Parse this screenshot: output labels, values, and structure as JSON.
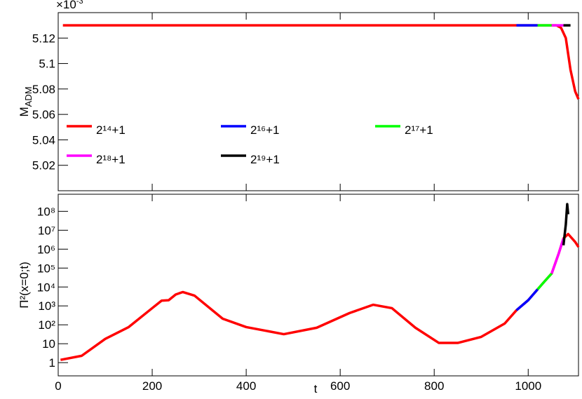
{
  "chart_data": [
    {
      "type": "line",
      "y_label": "M",
      "y_label_subscript": "ADM",
      "multiplier": "×10",
      "multiplier_exponent": "-3",
      "xlim": [
        0,
        1107
      ],
      "xticks": [
        0,
        200,
        400,
        600,
        800,
        1000
      ],
      "ylim": [
        5.0,
        5.14
      ],
      "yticks": [
        5.02,
        5.04,
        5.06,
        5.08,
        5.1,
        5.12
      ],
      "series": [
        {
          "name": "2¹⁴+1",
          "color": "#ff0000",
          "x": [
            10,
            1060,
            1070,
            1080,
            1090,
            1100,
            1107
          ],
          "values": [
            5.13,
            5.13,
            5.128,
            5.12,
            5.095,
            5.078,
            5.072
          ]
        },
        {
          "name": "2¹⁶+1",
          "color": "#0000ff",
          "x": [
            975,
            1020
          ],
          "values": [
            5.13,
            5.13
          ]
        },
        {
          "name": "2¹⁷+1",
          "color": "#00ff00",
          "x": [
            1020,
            1050
          ],
          "values": [
            5.13,
            5.13
          ]
        },
        {
          "name": "2¹⁸+1",
          "color": "#ff00ff",
          "x": [
            1050,
            1075
          ],
          "values": [
            5.13,
            5.13
          ]
        },
        {
          "name": "2¹⁹+1",
          "color": "#000000",
          "x": [
            1075,
            1090
          ],
          "values": [
            5.13,
            5.13
          ]
        }
      ]
    },
    {
      "type": "line",
      "y_label": "Π²(x=0;t)",
      "x_label": "t",
      "log_y": true,
      "xlim": [
        0,
        1107
      ],
      "xticks": [
        0,
        200,
        400,
        600,
        800,
        1000
      ],
      "ylim": [
        0.2,
        800000000
      ],
      "yticks": [
        1,
        10,
        {
          "value": 100,
          "label": "10²"
        },
        {
          "value": 1000,
          "label": "10³"
        },
        {
          "value": 10000,
          "label": "10⁴"
        },
        {
          "value": 100000,
          "label": "10⁵"
        },
        {
          "value": 1000000,
          "label": "10⁶"
        },
        {
          "value": 10000000,
          "label": "10⁷"
        },
        {
          "value": 100000000,
          "label": "10⁸"
        }
      ],
      "series": [
        {
          "color": "#ff0000",
          "x": [
            5,
            50,
            100,
            150,
            200,
            220,
            235,
            250,
            265,
            290,
            350,
            400,
            480,
            550,
            620,
            670,
            710,
            760,
            810,
            850,
            900,
            950,
            975,
            1000,
            1020,
            1035,
            1050,
            1065,
            1075,
            1085,
            1100,
            1107
          ],
          "values": [
            1.4,
            2.3,
            18,
            76,
            760,
            1900,
            2000,
            4000,
            5400,
            3500,
            210,
            76,
            32,
            70,
            420,
            1150,
            760,
            70,
            11,
            11,
            23,
            117,
            590,
            2000,
            7500,
            20000,
            52000,
            600000,
            3700000,
            6300000,
            2400000,
            1300000
          ]
        },
        {
          "color": "#0000ff",
          "x": [
            975,
            1000,
            1020
          ],
          "values": [
            590,
            2000,
            7500
          ]
        },
        {
          "color": "#00ff00",
          "x": [
            1020,
            1035,
            1050
          ],
          "values": [
            7500,
            20000,
            52000
          ]
        },
        {
          "color": "#ff00ff",
          "x": [
            1050,
            1065,
            1075
          ],
          "values": [
            52000,
            600000,
            3700000
          ]
        },
        {
          "color": "#000000",
          "x": [
            1075,
            1080,
            1083,
            1085
          ],
          "values": [
            1600000,
            20000000,
            240000000,
            70000000
          ]
        }
      ]
    }
  ]
}
